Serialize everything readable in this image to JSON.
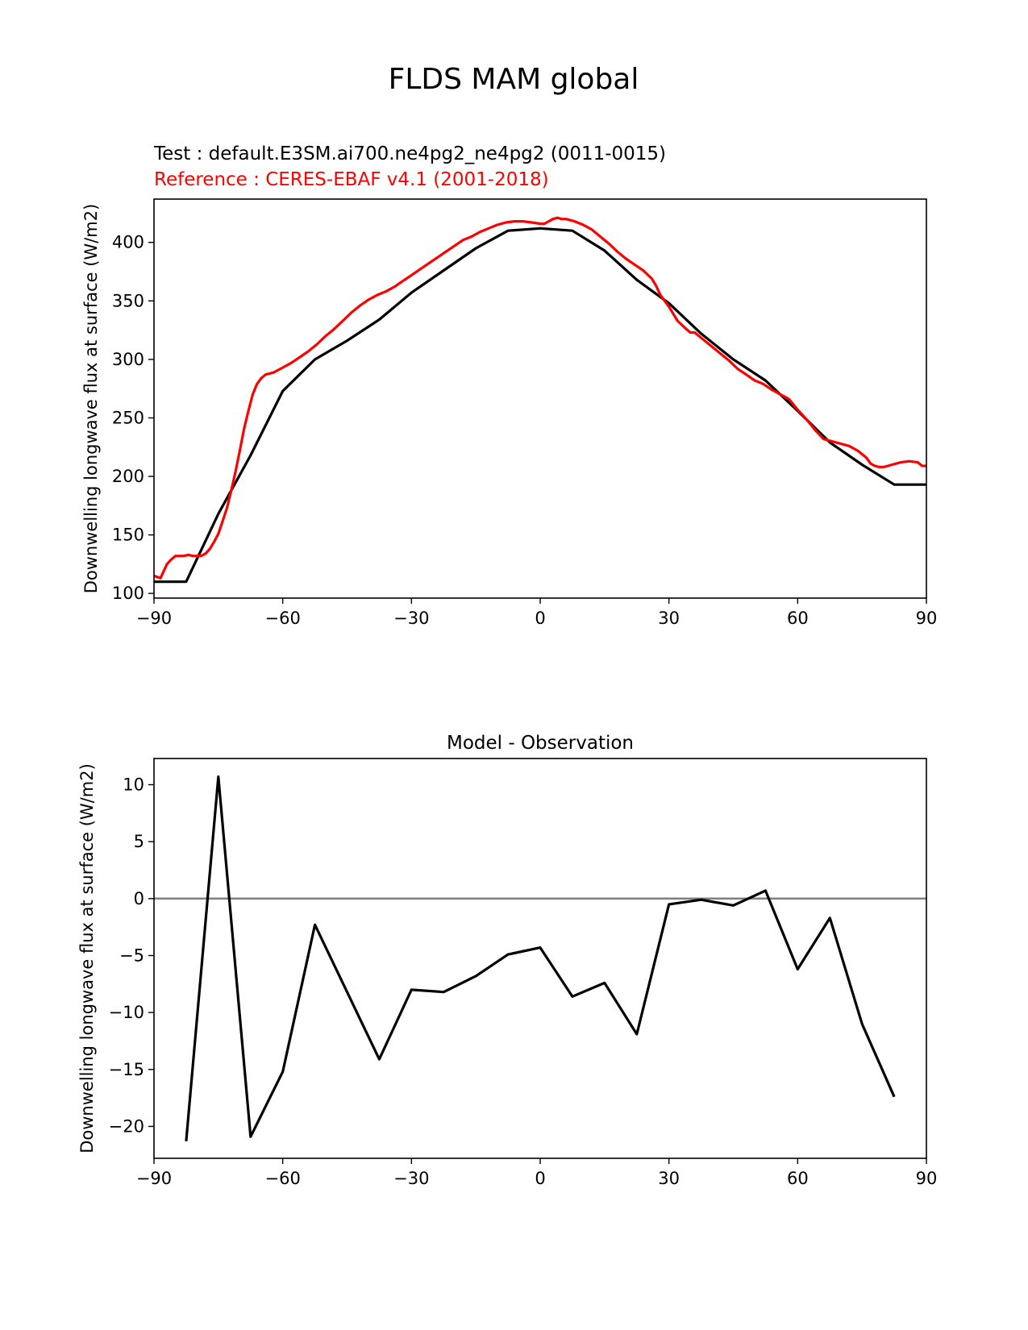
{
  "figure": {
    "suptitle": "FLDS MAM global",
    "test_label": "Test : default.E3SM.ai700.ne4pg2_ne4pg2 (0011-0015)",
    "reference_label": "Reference : CERES-EBAF v4.1 (2001-2018)",
    "colors": {
      "test": "#000000",
      "reference": "#ff0000",
      "zero_line": "#808080"
    }
  },
  "chart_data": [
    {
      "type": "line",
      "title": "",
      "xlabel": "",
      "ylabel": "Downwelling longwave flux at surface (W/m2)",
      "xlim": [
        -90,
        90
      ],
      "ylim": [
        96,
        437
      ],
      "xticks": [
        -90,
        -60,
        -30,
        0,
        30,
        60,
        90
      ],
      "xtick_labels": [
        "−90",
        "−60",
        "−30",
        "0",
        "30",
        "60",
        "90"
      ],
      "yticks": [
        100,
        150,
        200,
        250,
        300,
        350,
        400
      ],
      "ytick_labels": [
        "100",
        "150",
        "200",
        "250",
        "300",
        "350",
        "400"
      ],
      "grid": false,
      "series": [
        {
          "role": "test",
          "color": "#000000",
          "x": [
            -90,
            -82.5,
            -75,
            -67.5,
            -60,
            -52.5,
            -45,
            -37.5,
            -30,
            -22.5,
            -15,
            -7.5,
            0,
            7.5,
            15,
            22.5,
            30,
            37.5,
            45,
            52.5,
            60,
            67.5,
            75,
            82.5,
            90
          ],
          "y": [
            110,
            110,
            168,
            218,
            273,
            300,
            316,
            334,
            357,
            376,
            395,
            410,
            412,
            410,
            393,
            368,
            348,
            322,
            300,
            282,
            256,
            229,
            210,
            193,
            193
          ]
        },
        {
          "role": "reference",
          "color": "#ff0000",
          "x": [
            -90,
            -88.5,
            -87,
            -86,
            -85,
            -84,
            -83,
            -82,
            -81,
            -80,
            -79,
            -78,
            -77,
            -76,
            -75,
            -74,
            -73,
            -72,
            -71,
            -70,
            -69,
            -68,
            -67,
            -66,
            -65,
            -64,
            -63,
            -62,
            -61,
            -60,
            -58,
            -56,
            -54,
            -52,
            -50,
            -48,
            -46,
            -44,
            -42,
            -40,
            -38,
            -36,
            -34,
            -32,
            -30,
            -28,
            -26,
            -24,
            -22,
            -20,
            -18,
            -16,
            -14,
            -12,
            -10,
            -8,
            -6,
            -4,
            -2,
            0,
            1,
            2,
            3,
            4,
            5,
            6,
            8,
            10,
            12,
            14,
            16,
            18,
            20,
            22,
            24,
            26,
            27,
            28,
            30,
            32,
            34,
            35,
            36,
            38,
            40,
            42,
            44,
            46,
            48,
            50,
            52,
            54,
            56,
            58,
            60,
            62,
            64,
            66,
            68,
            70,
            72,
            74,
            76,
            77,
            78,
            79,
            80,
            81,
            82,
            84,
            86,
            88,
            89,
            90
          ],
          "y": [
            115,
            113,
            125,
            129,
            132,
            132,
            132,
            133,
            132,
            132,
            132,
            134,
            138,
            144,
            151,
            162,
            173,
            188,
            204,
            222,
            241,
            256,
            270,
            279,
            284,
            287,
            288,
            289,
            291,
            293,
            297,
            302,
            307,
            313,
            320,
            326,
            333,
            340,
            346,
            351,
            355,
            358,
            362,
            367,
            372,
            377,
            382,
            387,
            392,
            397,
            402,
            405,
            409,
            412,
            415,
            417,
            418,
            418,
            417,
            416,
            416,
            418,
            420,
            421,
            420,
            420,
            418,
            415,
            411,
            405,
            399,
            392,
            386,
            381,
            376,
            369,
            363,
            355,
            345,
            333,
            326,
            323,
            323,
            317,
            311,
            305,
            299,
            292,
            287,
            282,
            279,
            274,
            270,
            266,
            257,
            249,
            240,
            232,
            230,
            228,
            226,
            222,
            216,
            211,
            209,
            208,
            208,
            209,
            210,
            212,
            213,
            212,
            209,
            209
          ]
        }
      ]
    },
    {
      "type": "line",
      "title": "Model - Observation",
      "xlabel": "",
      "ylabel": "Downwelling longwave flux at surface (W/m2)",
      "xlim": [
        -90,
        90
      ],
      "ylim": [
        -22.8,
        12.3
      ],
      "xticks": [
        -90,
        -60,
        -30,
        0,
        30,
        60,
        90
      ],
      "xtick_labels": [
        "−90",
        "−60",
        "−30",
        "0",
        "30",
        "60",
        "90"
      ],
      "yticks": [
        -20,
        -15,
        -10,
        -5,
        0,
        5,
        10
      ],
      "ytick_labels": [
        "−20",
        "−15",
        "−10",
        "−5",
        "0",
        "5",
        "10"
      ],
      "grid": false,
      "reference_line_y": 0,
      "series": [
        {
          "role": "difference",
          "color": "#000000",
          "x": [
            -82.5,
            -75,
            -67.5,
            -60,
            -52.5,
            -45,
            -37.5,
            -30,
            -22.5,
            -15,
            -7.5,
            0,
            7.5,
            15,
            22.5,
            30,
            37.5,
            45,
            52.5,
            60,
            67.5,
            75,
            82.5
          ],
          "y": [
            -21.3,
            10.7,
            -20.9,
            -15.2,
            -2.3,
            -8.2,
            -14.1,
            -8.0,
            -8.2,
            -6.8,
            -4.9,
            -4.3,
            -8.6,
            -7.4,
            -11.9,
            -0.5,
            -0.1,
            -0.6,
            0.7,
            -6.2,
            -1.7,
            -11.0,
            -17.4
          ]
        }
      ]
    }
  ]
}
